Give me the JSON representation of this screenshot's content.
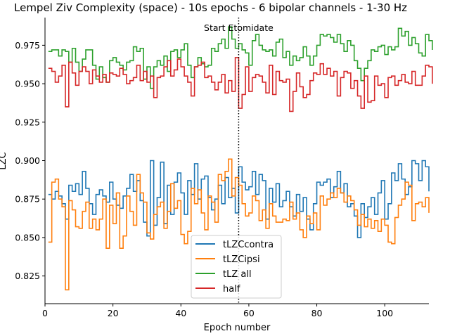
{
  "chart_data": {
    "type": "line",
    "title": "Lempel Ziv Complexity (space)   - 10s epochs - 6 bipolar channels - 1-30 Hz",
    "xlabel": "Epoch number",
    "ylabel": "LZC",
    "xlim": [
      0,
      113
    ],
    "ylim": [
      0.807,
      0.993
    ],
    "xticks": [
      0,
      20,
      40,
      60,
      80,
      100
    ],
    "yticks": [
      0.825,
      0.85,
      0.875,
      0.9,
      0.925,
      0.95,
      0.975
    ],
    "ytick_labels": [
      "0.825",
      "0.850",
      "0.875",
      "0.900",
      "0.925",
      "0.950",
      "0.975"
    ],
    "grid": false,
    "step": true,
    "legend_position": "lower center",
    "annotation": {
      "x": 57,
      "label": "Start Etomidate",
      "style": "dotted vertical line"
    },
    "x_start": 1,
    "series": [
      {
        "name": "tLZCcontra",
        "color": "#1f77b4",
        "values": [
          0.878,
          0.875,
          0.88,
          0.877,
          0.872,
          0.862,
          0.884,
          0.88,
          0.885,
          0.878,
          0.893,
          0.882,
          0.872,
          0.865,
          0.878,
          0.881,
          0.877,
          0.873,
          0.886,
          0.875,
          0.871,
          0.869,
          0.877,
          0.882,
          0.891,
          0.88,
          0.887,
          0.874,
          0.86,
          0.851,
          0.9,
          0.858,
          0.876,
          0.899,
          0.859,
          0.884,
          0.865,
          0.886,
          0.892,
          0.879,
          0.865,
          0.887,
          0.878,
          0.898,
          0.875,
          0.888,
          0.89,
          0.876,
          0.868,
          0.875,
          0.884,
          0.872,
          0.889,
          0.876,
          0.882,
          0.866,
          0.896,
          0.886,
          0.881,
          0.883,
          0.893,
          0.878,
          0.891,
          0.887,
          0.862,
          0.882,
          0.873,
          0.885,
          0.87,
          0.874,
          0.88,
          0.87,
          0.864,
          0.878,
          0.867,
          0.876,
          0.862,
          0.855,
          0.872,
          0.886,
          0.884,
          0.886,
          0.888,
          0.876,
          0.883,
          0.893,
          0.879,
          0.885,
          0.87,
          0.872,
          0.864,
          0.85,
          0.872,
          0.863,
          0.87,
          0.876,
          0.865,
          0.879,
          0.887,
          0.862,
          0.872,
          0.892,
          0.887,
          0.898,
          0.888,
          0.878,
          0.883,
          0.9,
          0.898,
          0.887,
          0.9,
          0.896,
          0.88
        ]
      },
      {
        "name": "tLZCipsi",
        "color": "#ff7f0e",
        "values": [
          0.847,
          0.886,
          0.888,
          0.875,
          0.87,
          0.816,
          0.874,
          0.868,
          0.857,
          0.856,
          0.867,
          0.873,
          0.856,
          0.862,
          0.855,
          0.862,
          0.875,
          0.843,
          0.871,
          0.859,
          0.879,
          0.843,
          0.851,
          0.877,
          0.867,
          0.858,
          0.891,
          0.879,
          0.873,
          0.853,
          0.849,
          0.865,
          0.87,
          0.873,
          0.856,
          0.867,
          0.885,
          0.869,
          0.874,
          0.852,
          0.846,
          0.854,
          0.882,
          0.872,
          0.881,
          0.866,
          0.855,
          0.877,
          0.873,
          0.86,
          0.891,
          0.887,
          0.893,
          0.901,
          0.877,
          0.889,
          0.884,
          0.872,
          0.864,
          0.866,
          0.877,
          0.874,
          0.861,
          0.868,
          0.856,
          0.872,
          0.864,
          0.86,
          0.86,
          0.862,
          0.861,
          0.873,
          0.862,
          0.866,
          0.855,
          0.85,
          0.864,
          0.859,
          0.866,
          0.855,
          0.877,
          0.871,
          0.875,
          0.879,
          0.876,
          0.882,
          0.879,
          0.873,
          0.877,
          0.874,
          0.868,
          0.858,
          0.865,
          0.857,
          0.862,
          0.856,
          0.861,
          0.854,
          0.862,
          0.858,
          0.847,
          0.846,
          0.863,
          0.871,
          0.875,
          0.886,
          0.884,
          0.861,
          0.872,
          0.873,
          0.87,
          0.876,
          0.866
        ]
      },
      {
        "name": "tLZ all",
        "color": "#2ca02c",
        "values": [
          0.971,
          0.972,
          0.972,
          0.968,
          0.972,
          0.971,
          0.964,
          0.973,
          0.964,
          0.958,
          0.966,
          0.972,
          0.972,
          0.962,
          0.953,
          0.961,
          0.954,
          0.951,
          0.965,
          0.967,
          0.964,
          0.962,
          0.959,
          0.964,
          0.965,
          0.974,
          0.971,
          0.973,
          0.953,
          0.961,
          0.947,
          0.961,
          0.965,
          0.962,
          0.968,
          0.958,
          0.971,
          0.972,
          0.967,
          0.972,
          0.976,
          0.962,
          0.954,
          0.961,
          0.967,
          0.963,
          0.961,
          0.962,
          0.973,
          0.971,
          0.976,
          0.979,
          0.973,
          0.987,
          0.979,
          0.973,
          0.976,
          0.972,
          0.97,
          0.962,
          0.978,
          0.982,
          0.975,
          0.972,
          0.971,
          0.972,
          0.968,
          0.977,
          0.979,
          0.967,
          0.971,
          0.962,
          0.968,
          0.965,
          0.967,
          0.974,
          0.968,
          0.962,
          0.968,
          0.975,
          0.982,
          0.981,
          0.982,
          0.98,
          0.977,
          0.982,
          0.976,
          0.971,
          0.978,
          0.975,
          0.965,
          0.96,
          0.952,
          0.96,
          0.965,
          0.972,
          0.971,
          0.974,
          0.975,
          0.969,
          0.974,
          0.972,
          0.974,
          0.986,
          0.981,
          0.984,
          0.975,
          0.98,
          0.976,
          0.97,
          0.968,
          0.982,
          0.978,
          0.972
        ]
      },
      {
        "name": "half",
        "color": "#d62728",
        "values": [
          0.96,
          0.958,
          0.951,
          0.955,
          0.962,
          0.935,
          0.964,
          0.957,
          0.949,
          0.958,
          0.961,
          0.958,
          0.95,
          0.959,
          0.955,
          0.951,
          0.956,
          0.951,
          0.957,
          0.956,
          0.955,
          0.96,
          0.956,
          0.95,
          0.952,
          0.954,
          0.962,
          0.952,
          0.958,
          0.951,
          0.955,
          0.941,
          0.954,
          0.955,
          0.961,
          0.965,
          0.955,
          0.959,
          0.966,
          0.961,
          0.955,
          0.951,
          0.942,
          0.961,
          0.962,
          0.964,
          0.954,
          0.955,
          0.951,
          0.946,
          0.951,
          0.956,
          0.944,
          0.952,
          0.945,
          0.967,
          0.934,
          0.943,
          0.961,
          0.945,
          0.954,
          0.956,
          0.955,
          0.951,
          0.944,
          0.962,
          0.943,
          0.958,
          0.952,
          0.951,
          0.953,
          0.932,
          0.945,
          0.957,
          0.948,
          0.941,
          0.943,
          0.952,
          0.957,
          0.956,
          0.963,
          0.956,
          0.96,
          0.955,
          0.958,
          0.942,
          0.954,
          0.958,
          0.957,
          0.947,
          0.952,
          0.942,
          0.934,
          0.955,
          0.938,
          0.939,
          0.955,
          0.949,
          0.95,
          0.941,
          0.954,
          0.955,
          0.949,
          0.952,
          0.956,
          0.951,
          0.95,
          0.958,
          0.949,
          0.949,
          0.955,
          0.962,
          0.961,
          0.95
        ]
      }
    ]
  }
}
